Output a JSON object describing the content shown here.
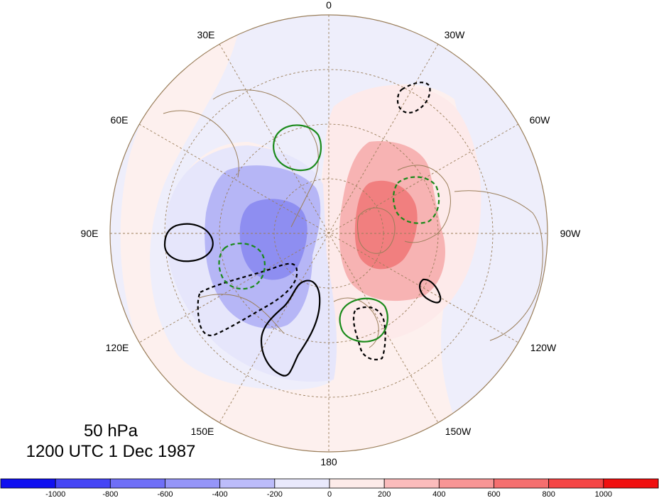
{
  "title": {
    "level": "50 hPa",
    "time": "1200 UTC 1 Dec 1987"
  },
  "projection": "north-polar-stereographic",
  "longitude_labels": [
    "0",
    "30W",
    "60W",
    "90W",
    "120W",
    "150W",
    "180",
    "150E",
    "120E",
    "90E",
    "60E",
    "30E"
  ],
  "colorbar": {
    "labels": [
      "-1000",
      "-800",
      "-600",
      "-400",
      "-200",
      "0",
      "200",
      "400",
      "600",
      "800",
      "1000"
    ],
    "colors": [
      "#1010f0",
      "#4545f5",
      "#6f6ff7",
      "#9595f8",
      "#bcbcfa",
      "#e9e9fc",
      "#fdebe9",
      "#fbbcbc",
      "#f89595",
      "#f56f6f",
      "#f54545",
      "#f01010"
    ]
  },
  "fields": {
    "shaded": "anomaly field, blue negative (Siberia), red positive (Canada/Greenland)",
    "contours": [
      {
        "color": "#000000",
        "style": "solid",
        "sign": "positive"
      },
      {
        "color": "#000000",
        "style": "dashed",
        "sign": "negative"
      },
      {
        "color": "#008000",
        "style": "solid",
        "sign": "positive"
      },
      {
        "color": "#008000",
        "style": "dashed",
        "sign": "negative"
      }
    ]
  }
}
